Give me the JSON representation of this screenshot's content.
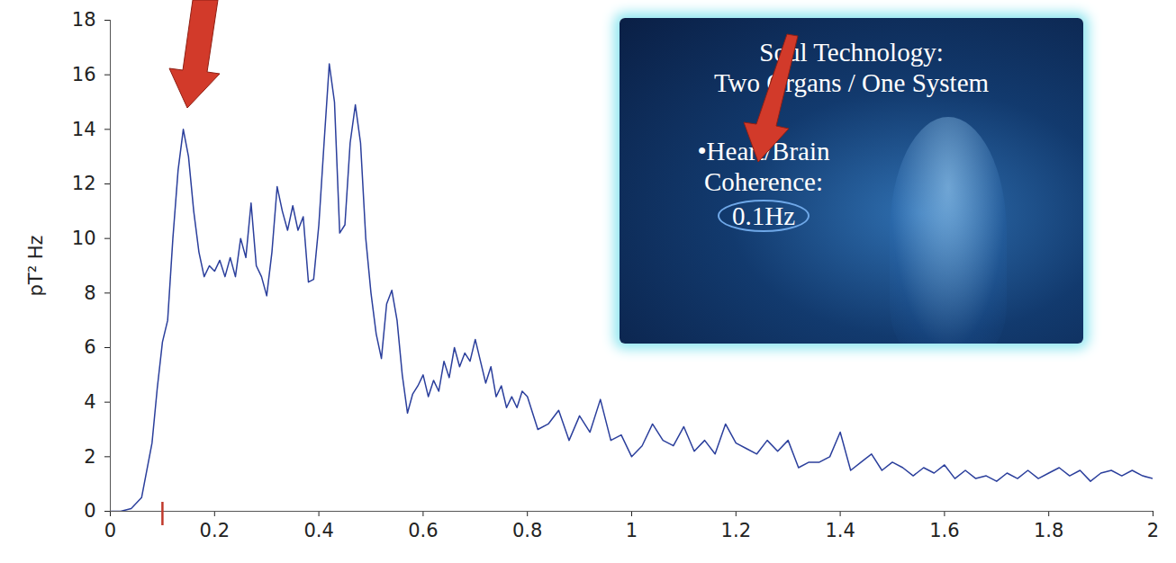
{
  "chart_data": {
    "type": "line",
    "y_label": "pT² Hz",
    "color": "#2b3f9c",
    "x": [
      0,
      0.02,
      0.04,
      0.06,
      0.08,
      0.09,
      0.1,
      0.11,
      0.12,
      0.13,
      0.14,
      0.15,
      0.16,
      0.17,
      0.18,
      0.19,
      0.2,
      0.21,
      0.22,
      0.23,
      0.24,
      0.25,
      0.26,
      0.27,
      0.28,
      0.29,
      0.3,
      0.31,
      0.32,
      0.33,
      0.34,
      0.35,
      0.36,
      0.37,
      0.38,
      0.39,
      0.4,
      0.41,
      0.42,
      0.43,
      0.44,
      0.45,
      0.46,
      0.47,
      0.48,
      0.49,
      0.5,
      0.51,
      0.52,
      0.53,
      0.54,
      0.55,
      0.56,
      0.57,
      0.58,
      0.59,
      0.6,
      0.61,
      0.62,
      0.63,
      0.64,
      0.65,
      0.66,
      0.67,
      0.68,
      0.69,
      0.7,
      0.71,
      0.72,
      0.73,
      0.74,
      0.75,
      0.76,
      0.77,
      0.78,
      0.79,
      0.8,
      0.82,
      0.84,
      0.86,
      0.88,
      0.9,
      0.92,
      0.94,
      0.96,
      0.98,
      1.0,
      1.02,
      1.04,
      1.06,
      1.08,
      1.1,
      1.12,
      1.14,
      1.16,
      1.18,
      1.2,
      1.22,
      1.24,
      1.26,
      1.28,
      1.3,
      1.32,
      1.34,
      1.36,
      1.38,
      1.4,
      1.42,
      1.44,
      1.46,
      1.48,
      1.5,
      1.52,
      1.54,
      1.56,
      1.58,
      1.6,
      1.62,
      1.64,
      1.66,
      1.68,
      1.7,
      1.72,
      1.74,
      1.76,
      1.78,
      1.8,
      1.82,
      1.84,
      1.86,
      1.88,
      1.9,
      1.92,
      1.94,
      1.96,
      1.98,
      2.0
    ],
    "values": [
      0,
      0,
      0.1,
      0.5,
      2.5,
      4.5,
      6.2,
      7,
      10,
      12.5,
      14,
      13,
      11,
      9.5,
      8.6,
      9,
      8.8,
      9.2,
      8.6,
      9.3,
      8.6,
      10,
      9.3,
      11.3,
      9,
      8.6,
      7.9,
      9.5,
      11.9,
      11,
      10.3,
      11.2,
      10.3,
      10.8,
      8.4,
      8.5,
      10.5,
      13.5,
      16.4,
      15,
      10.2,
      10.5,
      13.5,
      14.9,
      13.5,
      10,
      8,
      6.5,
      5.6,
      7.6,
      8.1,
      7,
      5,
      3.6,
      4.3,
      4.6,
      5,
      4.2,
      4.8,
      4.4,
      5.5,
      4.9,
      6,
      5.3,
      5.8,
      5.5,
      6.3,
      5.5,
      4.7,
      5.3,
      4.2,
      4.6,
      3.8,
      4.2,
      3.8,
      4.4,
      4.2,
      3,
      3.2,
      3.7,
      2.6,
      3.5,
      2.9,
      4.1,
      2.6,
      2.8,
      2,
      2.4,
      3.2,
      2.6,
      2.4,
      3.1,
      2.2,
      2.6,
      2.1,
      3.2,
      2.5,
      2.3,
      2.1,
      2.6,
      2.2,
      2.6,
      1.6,
      1.8,
      1.8,
      2,
      2.9,
      1.5,
      1.8,
      2.1,
      1.5,
      1.8,
      1.6,
      1.3,
      1.6,
      1.4,
      1.7,
      1.2,
      1.5,
      1.2,
      1.3,
      1.1,
      1.4,
      1.2,
      1.5,
      1.2,
      1.4,
      1.6,
      1.3,
      1.5,
      1.1,
      1.4,
      1.5,
      1.3,
      1.5,
      1.3,
      1.2
    ],
    "xlim": [
      0,
      2
    ],
    "xticks": [
      0,
      0.2,
      0.4,
      0.6,
      0.8,
      1,
      1.2,
      1.4,
      1.6,
      1.8,
      2
    ],
    "ylim": [
      0,
      18
    ],
    "yticks": [
      0,
      2,
      4,
      6,
      8,
      10,
      12,
      14,
      16,
      18
    ],
    "grid": false,
    "highlight_x": 0.1,
    "annotations": [
      "Soul Technology:",
      "Two Organs / One System",
      "•Heart/Brain",
      "Coherence:",
      "0.1Hz"
    ]
  }
}
